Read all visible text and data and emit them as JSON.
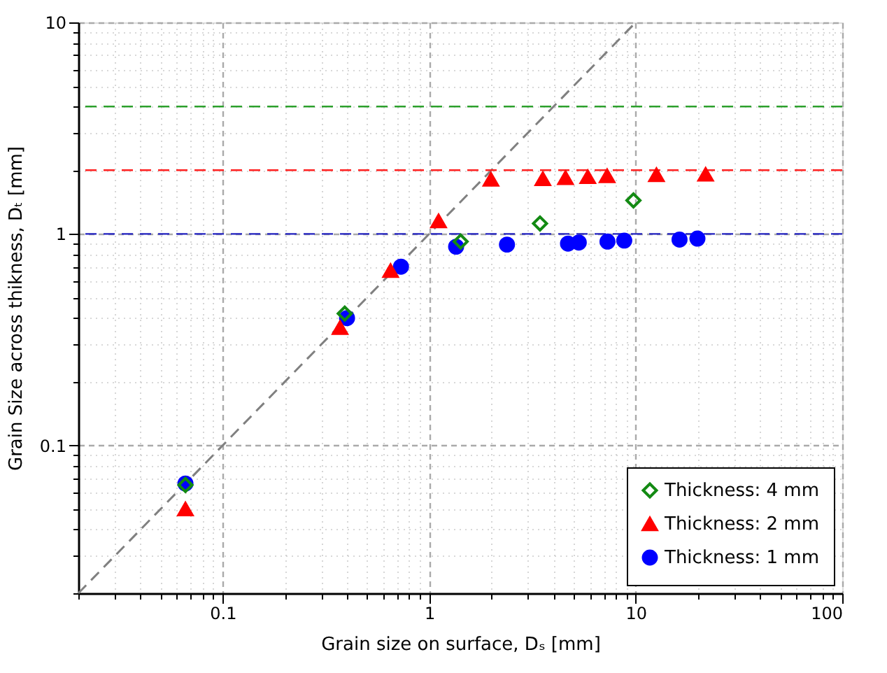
{
  "chart_data": {
    "type": "scatter",
    "xlabel": "Grain size on surface, Dₛ [mm]",
    "ylabel": "Grain Size across thikness, Dₜ [mm]",
    "log": "xy",
    "xlim": [
      0.02,
      100
    ],
    "ylim": [
      0.02,
      10
    ],
    "xticks": [
      {
        "value": 0.02,
        "label": null
      },
      {
        "value": 0.03,
        "label": null
      },
      {
        "value": 0.04,
        "label": null
      },
      {
        "value": 0.05,
        "label": null
      },
      {
        "value": 0.06,
        "label": null
      },
      {
        "value": 0.07,
        "label": null
      },
      {
        "value": 0.08,
        "label": null
      },
      {
        "value": 0.09,
        "label": null
      },
      0.1,
      {
        "value": 0.2,
        "label": null
      },
      {
        "value": 0.3,
        "label": null
      },
      {
        "value": 0.4,
        "label": null
      },
      {
        "value": 0.5,
        "label": null
      },
      {
        "value": 0.6,
        "label": null
      },
      {
        "value": 0.7,
        "label": null
      },
      {
        "value": 0.8,
        "label": null
      },
      {
        "value": 0.9,
        "label": null
      },
      1,
      {
        "value": 2,
        "label": null
      },
      {
        "value": 3,
        "label": null
      },
      {
        "value": 4,
        "label": null
      },
      {
        "value": 5,
        "label": null
      },
      {
        "value": 6,
        "label": null
      },
      {
        "value": 7,
        "label": null
      },
      {
        "value": 8,
        "label": null
      },
      {
        "value": 9,
        "label": null
      },
      10,
      {
        "value": 20,
        "label": null
      },
      {
        "value": 30,
        "label": null
      },
      {
        "value": 40,
        "label": null
      },
      {
        "value": 50,
        "label": null
      },
      {
        "value": 60,
        "label": null
      },
      {
        "value": 70,
        "label": null
      },
      {
        "value": 80,
        "label": null
      },
      {
        "value": 90,
        "label": null
      },
      100
    ],
    "yticks": [
      {
        "value": 0.02,
        "label": null
      },
      {
        "value": 0.03,
        "label": null
      },
      {
        "value": 0.04,
        "label": null
      },
      {
        "value": 0.05,
        "label": null
      },
      {
        "value": 0.06,
        "label": null
      },
      {
        "value": 0.07,
        "label": null
      },
      {
        "value": 0.08,
        "label": null
      },
      {
        "value": 0.09,
        "label": null
      },
      0.1,
      {
        "value": 0.2,
        "label": null
      },
      {
        "value": 0.3,
        "label": null
      },
      {
        "value": 0.4,
        "label": null
      },
      {
        "value": 0.5,
        "label": null
      },
      {
        "value": 0.6,
        "label": null
      },
      {
        "value": 0.7,
        "label": null
      },
      {
        "value": 0.8,
        "label": null
      },
      {
        "value": 0.9,
        "label": null
      },
      1,
      {
        "value": 2,
        "label": null
      },
      {
        "value": 3,
        "label": null
      },
      {
        "value": 4,
        "label": null
      },
      {
        "value": 5,
        "label": null
      },
      {
        "value": 6,
        "label": null
      },
      {
        "value": 7,
        "label": null
      },
      {
        "value": 8,
        "label": null
      },
      {
        "value": 9,
        "label": null
      },
      10
    ],
    "grid": true,
    "legend": "bottom right",
    "ref_lines": [
      {
        "axis": "y",
        "value": 4,
        "color": "#2ca02c",
        "line_style": "dashed"
      },
      {
        "axis": "y",
        "value": 2,
        "color": "#ff2020",
        "line_style": "dashed"
      },
      {
        "axis": "y",
        "value": 1,
        "color": "#2020c0",
        "line_style": "dashed"
      }
    ],
    "series": [
      {
        "type": "line",
        "color": "#808080",
        "line_style": "dashed",
        "marker": "none",
        "x": [
          0.02,
          10
        ],
        "values": [
          0.02,
          10
        ]
      },
      {
        "name": "Thickness: 4 mm",
        "color": "#138a13",
        "marker": "diamond",
        "x": [
          0.066,
          0.39,
          1.42,
          3.44,
          9.75
        ],
        "values": [
          0.065,
          0.42,
          0.92,
          1.12,
          1.44
        ]
      },
      {
        "name": "Thickness: 2 mm",
        "color": "#ff0000",
        "marker": "triangle",
        "x": [
          0.066,
          0.37,
          0.65,
          1.11,
          1.99,
          3.55,
          4.57,
          5.86,
          7.27,
          12.6,
          21.8
        ],
        "values": [
          0.05,
          0.36,
          0.67,
          1.15,
          1.81,
          1.82,
          1.84,
          1.86,
          1.88,
          1.9,
          1.91
        ]
      },
      {
        "name": "Thickness: 1 mm",
        "color": "#0000ff",
        "marker": "circle",
        "x": [
          0.066,
          0.4,
          0.73,
          1.35,
          2.38,
          4.7,
          5.3,
          7.3,
          8.8,
          16.3,
          19.9
        ],
        "values": [
          0.066,
          0.4,
          0.7,
          0.87,
          0.89,
          0.9,
          0.91,
          0.92,
          0.93,
          0.94,
          0.95
        ]
      }
    ]
  }
}
